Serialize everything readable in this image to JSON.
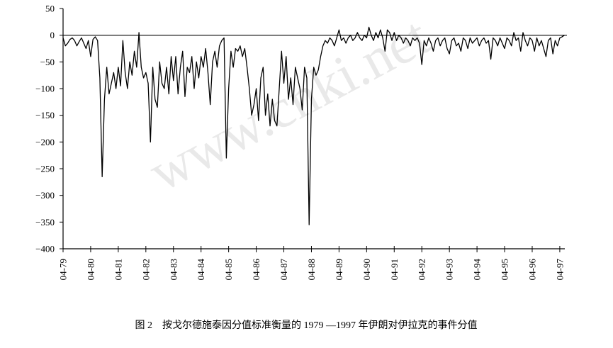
{
  "chart_data": {
    "type": "line",
    "caption": "图 2　按戈尔德施泰因分值标准衡量的 1979 —1997 年伊朗对伊拉克的事件分值",
    "watermark": "www.cnki.net",
    "categories": [
      "04-79",
      null,
      null,
      null,
      null,
      null,
      null,
      null,
      null,
      null,
      null,
      null,
      "04-80",
      null,
      null,
      null,
      null,
      null,
      null,
      null,
      null,
      null,
      null,
      null,
      "04-81",
      null,
      null,
      null,
      null,
      null,
      null,
      null,
      null,
      null,
      null,
      null,
      "04-82",
      null,
      null,
      null,
      null,
      null,
      null,
      null,
      null,
      null,
      null,
      null,
      "04-83",
      null,
      null,
      null,
      null,
      null,
      null,
      null,
      null,
      null,
      null,
      null,
      "04-84",
      null,
      null,
      null,
      null,
      null,
      null,
      null,
      null,
      null,
      null,
      null,
      "04-85",
      null,
      null,
      null,
      null,
      null,
      null,
      null,
      null,
      null,
      null,
      null,
      "04-86",
      null,
      null,
      null,
      null,
      null,
      null,
      null,
      null,
      null,
      null,
      null,
      "04-87",
      null,
      null,
      null,
      null,
      null,
      null,
      null,
      null,
      null,
      null,
      null,
      "04-88",
      null,
      null,
      null,
      null,
      null,
      null,
      null,
      null,
      null,
      null,
      null,
      "04-89",
      null,
      null,
      null,
      null,
      null,
      null,
      null,
      null,
      null,
      null,
      null,
      "04-90",
      null,
      null,
      null,
      null,
      null,
      null,
      null,
      null,
      null,
      null,
      null,
      "04-91",
      null,
      null,
      null,
      null,
      null,
      null,
      null,
      null,
      null,
      null,
      null,
      "04-92",
      null,
      null,
      null,
      null,
      null,
      null,
      null,
      null,
      null,
      null,
      null,
      "04-93",
      null,
      null,
      null,
      null,
      null,
      null,
      null,
      null,
      null,
      null,
      null,
      "04-94",
      null,
      null,
      null,
      null,
      null,
      null,
      null,
      null,
      null,
      null,
      null,
      "04-95",
      null,
      null,
      null,
      null,
      null,
      null,
      null,
      null,
      null,
      null,
      null,
      "04-96",
      null,
      null,
      null,
      null,
      null,
      null,
      null,
      null,
      null,
      null,
      null,
      "04-97",
      null,
      null
    ],
    "values": [
      -5,
      -20,
      -15,
      -8,
      -5,
      -10,
      -20,
      -12,
      -5,
      -15,
      -25,
      -10,
      -40,
      -8,
      -3,
      -10,
      -80,
      -265,
      -120,
      -60,
      -110,
      -90,
      -70,
      -100,
      -60,
      -95,
      -10,
      -70,
      -100,
      -50,
      -75,
      -30,
      -60,
      5,
      -60,
      -80,
      -70,
      -90,
      -200,
      -60,
      -120,
      -135,
      -50,
      -90,
      -100,
      -60,
      -110,
      -40,
      -85,
      -40,
      -110,
      -60,
      -30,
      -115,
      -60,
      -70,
      -40,
      -100,
      -50,
      -80,
      -40,
      -60,
      -25,
      -70,
      -130,
      -50,
      -30,
      -60,
      -20,
      -10,
      -5,
      -230,
      -100,
      -30,
      -60,
      -25,
      -30,
      -20,
      -40,
      -25,
      -60,
      -100,
      -150,
      -130,
      -100,
      -160,
      -80,
      -60,
      -150,
      -110,
      -170,
      -120,
      -160,
      -170,
      -100,
      -30,
      -90,
      -40,
      -120,
      -80,
      -130,
      -60,
      -80,
      -100,
      -140,
      -60,
      -80,
      -355,
      -120,
      -60,
      -75,
      -65,
      -40,
      -20,
      -10,
      -15,
      -5,
      -10,
      -20,
      -5,
      10,
      -10,
      -5,
      -15,
      -5,
      0,
      -10,
      -5,
      5,
      -5,
      -10,
      0,
      -5,
      15,
      0,
      -10,
      5,
      -5,
      10,
      -5,
      -30,
      10,
      5,
      -10,
      5,
      -10,
      0,
      -5,
      -15,
      -5,
      -10,
      -20,
      -5,
      -10,
      -5,
      -15,
      -55,
      -10,
      -20,
      -5,
      -15,
      -30,
      -10,
      -5,
      -20,
      -10,
      -5,
      -25,
      -35,
      -10,
      -5,
      -20,
      -15,
      -30,
      -5,
      -10,
      -25,
      -5,
      -15,
      -10,
      -5,
      -20,
      -10,
      -5,
      -15,
      -10,
      -45,
      -5,
      -10,
      -20,
      -5,
      -15,
      -25,
      -5,
      -10,
      -20,
      5,
      -10,
      -5,
      -30,
      5,
      -10,
      -20,
      -5,
      -10,
      -30,
      -5,
      -20,
      -10,
      -25,
      -40,
      -10,
      -5,
      -35,
      -10,
      -20,
      -5,
      -3,
      0
    ],
    "color": "#000000",
    "ylim": [
      -400,
      50
    ],
    "yticks": [
      50,
      0,
      {
        "value": -50,
        "label": "−50"
      },
      {
        "value": -100,
        "label": "−100"
      },
      {
        "value": -150,
        "label": "−150"
      },
      {
        "value": -200,
        "label": "−200"
      },
      {
        "value": -250,
        "label": "−250"
      },
      {
        "value": -300,
        "label": "−300"
      },
      {
        "value": -350,
        "label": "−350"
      },
      {
        "value": -400,
        "label": "−400"
      }
    ],
    "grid": false
  }
}
